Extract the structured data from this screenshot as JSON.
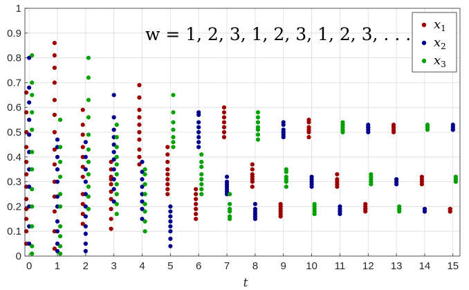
{
  "chart_data": {
    "type": "scatter",
    "title": "",
    "annotation": "w = 1, 2, 3, 1, 2, 3, 1, 2, 3, . . .",
    "xlabel": "t",
    "ylabel": "",
    "xlim": [
      -0.15,
      15.25
    ],
    "ylim": [
      0,
      1
    ],
    "x_ticks": [
      "0",
      "1",
      "2",
      "3",
      "4",
      "5",
      "6",
      "7",
      "8",
      "9",
      "10",
      "11",
      "12",
      "13",
      "14",
      "15"
    ],
    "y_ticks": [
      "0",
      "0.1",
      "0.2",
      "0.3",
      "0.4",
      "0.5",
      "0.6",
      "0.7",
      "0.8",
      "0.9",
      "1"
    ],
    "grid": true,
    "legend_position": "top-right",
    "series": [
      {
        "name": "x1",
        "legend_base": "x",
        "legend_sub": "1",
        "color": "#9a0000",
        "x": [
          -0.1,
          -0.1,
          -0.1,
          -0.1,
          -0.1,
          -0.1,
          -0.1,
          -0.1,
          -0.1,
          -0.1,
          -0.1,
          -0.1,
          0.9,
          0.9,
          0.9,
          0.9,
          0.9,
          0.9,
          0.9,
          0.9,
          0.9,
          0.9,
          0.9,
          0.9,
          0.9,
          0.9,
          1.9,
          1.9,
          1.9,
          1.9,
          1.9,
          1.9,
          1.9,
          1.9,
          1.9,
          1.9,
          1.9,
          2.9,
          2.9,
          2.9,
          2.9,
          2.9,
          2.9,
          2.9,
          2.9,
          2.9,
          2.9,
          3.9,
          3.9,
          3.9,
          3.9,
          3.9,
          3.9,
          3.9,
          3.9,
          3.9,
          3.9,
          4.9,
          4.9,
          4.9,
          4.9,
          4.9,
          4.9,
          4.9,
          4.9,
          4.9,
          5.9,
          5.9,
          5.9,
          5.9,
          5.9,
          5.9,
          5.9,
          6.9,
          6.9,
          6.9,
          6.9,
          6.9,
          6.9,
          6.9,
          7.9,
          7.9,
          7.9,
          7.9,
          7.9,
          7.9,
          7.9,
          8.9,
          8.9,
          8.9,
          8.9,
          8.9,
          8.9,
          9.9,
          9.9,
          9.9,
          9.9,
          9.9,
          9.9,
          10.9,
          10.9,
          10.9,
          10.9,
          10.9,
          11.9,
          11.9,
          11.9,
          11.9,
          11.9,
          12.9,
          12.9,
          12.9,
          12.9,
          12.9,
          13.9,
          13.9,
          13.9,
          13.9,
          14.9,
          14.9,
          14.9,
          14.9
        ],
        "y": [
          0.05,
          0.1,
          0.15,
          0.19,
          0.23,
          0.28,
          0.33,
          0.38,
          0.44,
          0.5,
          0.58,
          0.66,
          0.03,
          0.1,
          0.18,
          0.24,
          0.3,
          0.37,
          0.43,
          0.5,
          0.57,
          0.63,
          0.7,
          0.76,
          0.81,
          0.86,
          0.13,
          0.17,
          0.21,
          0.25,
          0.32,
          0.36,
          0.4,
          0.44,
          0.49,
          0.53,
          0.59,
          0.11,
          0.15,
          0.19,
          0.23,
          0.26,
          0.29,
          0.32,
          0.35,
          0.38,
          0.31,
          0.37,
          0.4,
          0.43,
          0.47,
          0.5,
          0.53,
          0.56,
          0.59,
          0.64,
          0.69,
          0.25,
          0.27,
          0.29,
          0.31,
          0.33,
          0.35,
          0.38,
          0.41,
          0.44,
          0.15,
          0.17,
          0.19,
          0.21,
          0.23,
          0.25,
          0.27,
          0.48,
          0.5,
          0.52,
          0.54,
          0.56,
          0.58,
          0.6,
          0.28,
          0.3,
          0.31,
          0.32,
          0.33,
          0.35,
          0.37,
          0.16,
          0.17,
          0.18,
          0.19,
          0.2,
          0.21,
          0.48,
          0.5,
          0.51,
          0.52,
          0.54,
          0.55,
          0.28,
          0.29,
          0.3,
          0.31,
          0.33,
          0.18,
          0.19,
          0.19,
          0.2,
          0.21,
          0.5,
          0.51,
          0.52,
          0.52,
          0.53,
          0.29,
          0.3,
          0.31,
          0.32,
          0.18,
          0.18,
          0.19,
          0.19
        ]
      },
      {
        "name": "x2",
        "legend_base": "x",
        "legend_sub": "2",
        "color": "#00008b",
        "x": [
          0.0,
          0.0,
          0.0,
          0.0,
          0.0,
          0.0,
          0.0,
          0.0,
          0.0,
          0.0,
          0.0,
          1.0,
          1.0,
          1.0,
          1.0,
          1.0,
          1.0,
          1.0,
          1.0,
          1.0,
          1.0,
          1.0,
          2.0,
          2.0,
          2.0,
          2.0,
          2.0,
          2.0,
          2.0,
          2.0,
          2.0,
          2.0,
          2.0,
          3.0,
          3.0,
          3.0,
          3.0,
          3.0,
          3.0,
          3.0,
          3.0,
          3.0,
          3.0,
          3.0,
          4.0,
          4.0,
          4.0,
          4.0,
          4.0,
          4.0,
          4.0,
          4.0,
          5.0,
          5.0,
          5.0,
          5.0,
          5.0,
          5.0,
          5.0,
          5.0,
          6.0,
          6.0,
          6.0,
          6.0,
          6.0,
          6.0,
          6.0,
          6.0,
          7.0,
          7.0,
          7.0,
          7.0,
          7.0,
          7.0,
          7.0,
          8.0,
          8.0,
          8.0,
          8.0,
          8.0,
          8.0,
          9.0,
          9.0,
          9.0,
          9.0,
          9.0,
          9.0,
          10.0,
          10.0,
          10.0,
          10.0,
          10.0,
          11.0,
          11.0,
          11.0,
          11.0,
          11.0,
          12.0,
          12.0,
          12.0,
          12.0,
          12.0,
          13.0,
          13.0,
          13.0,
          13.0,
          14.0,
          14.0,
          14.0,
          14.0,
          15.0,
          15.0,
          15.0,
          15.0
        ],
        "y": [
          0.05,
          0.12,
          0.2,
          0.28,
          0.35,
          0.42,
          0.49,
          0.55,
          0.62,
          0.68,
          0.8,
          0.02,
          0.05,
          0.1,
          0.14,
          0.2,
          0.24,
          0.3,
          0.35,
          0.4,
          0.44,
          0.47,
          0.02,
          0.05,
          0.09,
          0.12,
          0.16,
          0.2,
          0.25,
          0.3,
          0.35,
          0.4,
          0.46,
          0.22,
          0.27,
          0.31,
          0.35,
          0.39,
          0.42,
          0.45,
          0.48,
          0.51,
          0.56,
          0.65,
          0.15,
          0.19,
          0.22,
          0.25,
          0.28,
          0.31,
          0.34,
          0.38,
          0.04,
          0.07,
          0.1,
          0.12,
          0.14,
          0.16,
          0.18,
          0.2,
          0.44,
          0.46,
          0.48,
          0.5,
          0.52,
          0.54,
          0.57,
          0.58,
          0.25,
          0.26,
          0.27,
          0.28,
          0.29,
          0.3,
          0.32,
          0.15,
          0.16,
          0.17,
          0.18,
          0.19,
          0.21,
          0.48,
          0.49,
          0.5,
          0.51,
          0.53,
          0.54,
          0.28,
          0.29,
          0.3,
          0.31,
          0.32,
          0.17,
          0.18,
          0.18,
          0.19,
          0.2,
          0.5,
          0.51,
          0.52,
          0.52,
          0.53,
          0.29,
          0.3,
          0.31,
          0.31,
          0.18,
          0.18,
          0.19,
          0.19,
          0.51,
          0.51,
          0.52,
          0.53
        ]
      },
      {
        "name": "x3",
        "legend_base": "x",
        "legend_sub": "3",
        "color": "#00a000",
        "x": [
          0.1,
          0.1,
          0.1,
          0.1,
          0.1,
          0.1,
          0.1,
          0.1,
          0.1,
          0.1,
          0.1,
          0.1,
          1.1,
          1.1,
          1.1,
          1.1,
          1.1,
          1.1,
          1.1,
          1.1,
          1.1,
          1.1,
          2.1,
          2.1,
          2.1,
          2.1,
          2.1,
          2.1,
          2.1,
          2.1,
          2.1,
          2.1,
          2.1,
          3.1,
          3.1,
          3.1,
          3.1,
          3.1,
          3.1,
          3.1,
          3.1,
          3.1,
          3.1,
          4.1,
          4.1,
          4.1,
          4.1,
          4.1,
          4.1,
          4.1,
          4.1,
          5.1,
          5.1,
          5.1,
          5.1,
          5.1,
          5.1,
          5.1,
          6.1,
          6.1,
          6.1,
          6.1,
          6.1,
          6.1,
          6.1,
          6.1,
          7.1,
          7.1,
          7.1,
          7.1,
          7.1,
          7.1,
          8.1,
          8.1,
          8.1,
          8.1,
          8.1,
          8.1,
          8.1,
          9.1,
          9.1,
          9.1,
          9.1,
          9.1,
          9.1,
          10.1,
          10.1,
          10.1,
          10.1,
          10.1,
          11.1,
          11.1,
          11.1,
          11.1,
          11.1,
          12.1,
          12.1,
          12.1,
          12.1,
          12.1,
          13.1,
          13.1,
          13.1,
          13.1,
          14.1,
          14.1,
          14.1,
          14.1,
          15.1,
          15.1,
          15.1,
          15.1
        ],
        "y": [
          0.01,
          0.04,
          0.12,
          0.2,
          0.27,
          0.35,
          0.42,
          0.51,
          0.58,
          0.65,
          0.7,
          0.81,
          0.01,
          0.04,
          0.08,
          0.12,
          0.2,
          0.25,
          0.32,
          0.38,
          0.44,
          0.55,
          0.19,
          0.24,
          0.28,
          0.33,
          0.38,
          0.43,
          0.49,
          0.56,
          0.63,
          0.72,
          0.8,
          0.17,
          0.21,
          0.25,
          0.29,
          0.33,
          0.37,
          0.4,
          0.44,
          0.48,
          0.53,
          0.1,
          0.14,
          0.18,
          0.21,
          0.25,
          0.29,
          0.33,
          0.35,
          0.44,
          0.46,
          0.48,
          0.51,
          0.54,
          0.58,
          0.65,
          0.25,
          0.27,
          0.29,
          0.31,
          0.33,
          0.36,
          0.38,
          0.41,
          0.15,
          0.16,
          0.18,
          0.19,
          0.21,
          0.25,
          0.47,
          0.49,
          0.51,
          0.52,
          0.54,
          0.56,
          0.58,
          0.28,
          0.3,
          0.31,
          0.32,
          0.34,
          0.35,
          0.17,
          0.18,
          0.19,
          0.2,
          0.21,
          0.5,
          0.51,
          0.52,
          0.53,
          0.54,
          0.29,
          0.3,
          0.31,
          0.32,
          0.33,
          0.18,
          0.19,
          0.19,
          0.2,
          0.51,
          0.52,
          0.52,
          0.53,
          0.3,
          0.31,
          0.31,
          0.32
        ]
      }
    ]
  }
}
